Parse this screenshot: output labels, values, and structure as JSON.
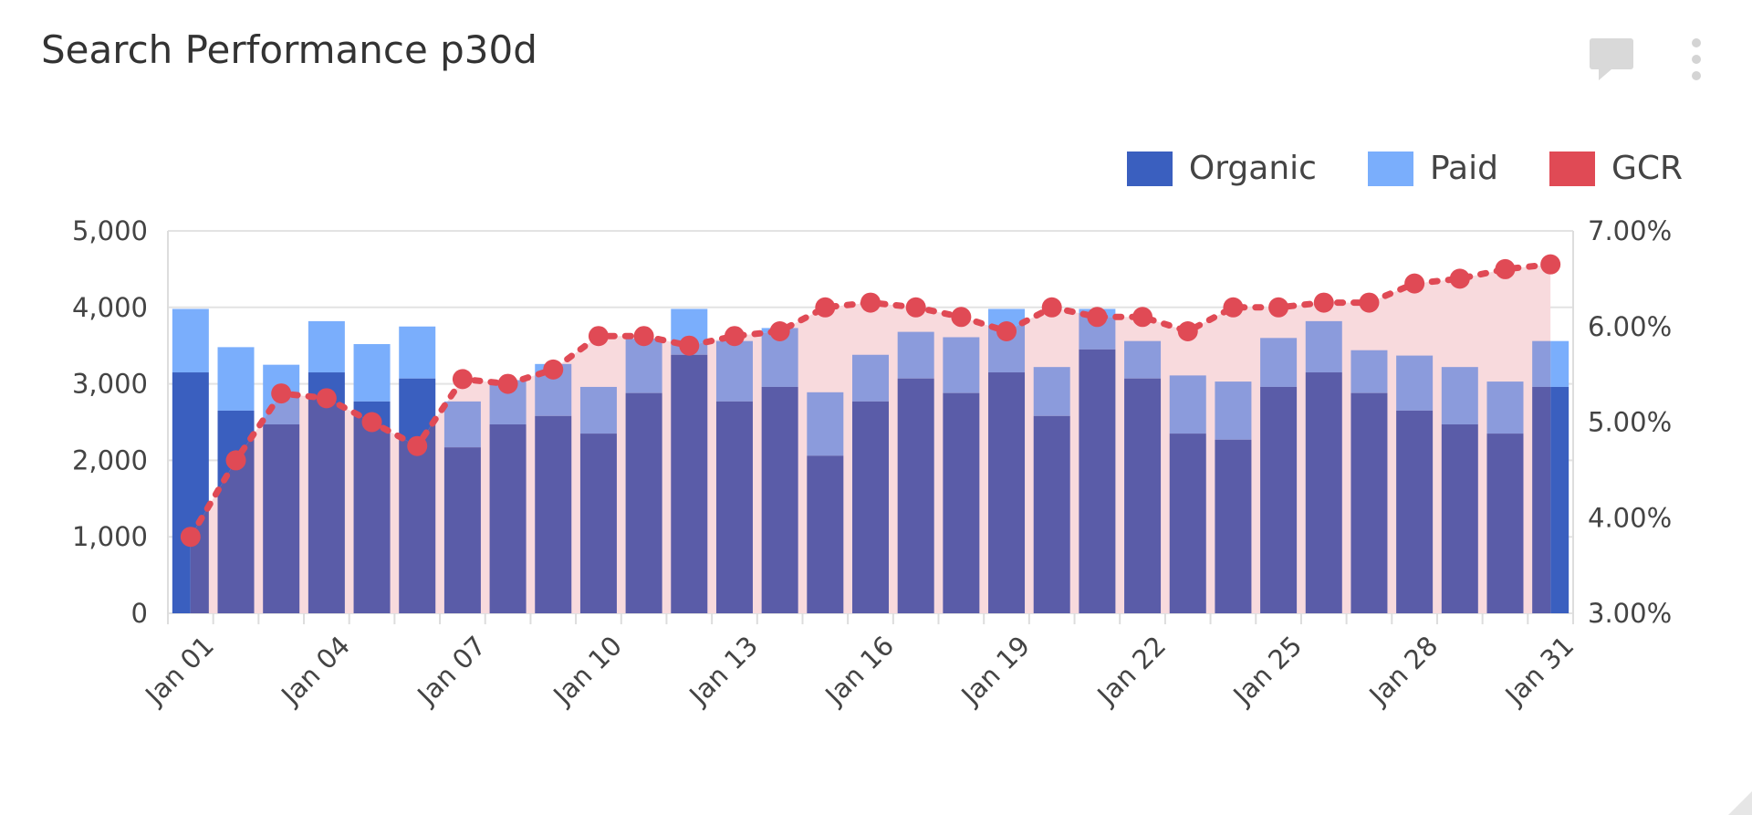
{
  "header": {
    "title": "Search Performance p30d",
    "comment_icon": "comment-icon",
    "menu_icon": "kebab-menu-icon"
  },
  "colors": {
    "organic": "#3a5fbf",
    "paid": "#7aaefc",
    "gcr": "#e04a55",
    "organic_under_area": "#5a5ca8",
    "paid_under_area": "#8b9bdc",
    "gcr_area": "#f8dadd"
  },
  "chart_data": {
    "type": "bar+line",
    "title": "Search Performance p30d",
    "legend": [
      {
        "name": "Organic"
      },
      {
        "name": "Paid"
      },
      {
        "name": "GCR"
      }
    ],
    "legend_position": "top-right",
    "categories": [
      "Jan 01",
      "Jan 02",
      "Jan 03",
      "Jan 04",
      "Jan 05",
      "Jan 06",
      "Jan 07",
      "Jan 08",
      "Jan 09",
      "Jan 10",
      "Jan 11",
      "Jan 12",
      "Jan 13",
      "Jan 14",
      "Jan 15",
      "Jan 16",
      "Jan 17",
      "Jan 18",
      "Jan 19",
      "Jan 20",
      "Jan 21",
      "Jan 22",
      "Jan 23",
      "Jan 24",
      "Jan 25",
      "Jan 26",
      "Jan 27",
      "Jan 28",
      "Jan 29",
      "Jan 30",
      "Jan 31"
    ],
    "x_tick_labels": [
      "Jan 01",
      "Jan 04",
      "Jan 07",
      "Jan 10",
      "Jan 13",
      "Jan 16",
      "Jan 19",
      "Jan 22",
      "Jan 25",
      "Jan 28",
      "Jan 31"
    ],
    "series": [
      {
        "name": "Organic",
        "type": "bar",
        "stacked": true,
        "axis": "left",
        "values": [
          3150,
          2650,
          2470,
          3150,
          2770,
          3070,
          2170,
          2470,
          2580,
          2350,
          2880,
          3380,
          2770,
          2960,
          2060,
          2770,
          3070,
          2880,
          3150,
          2580,
          3450,
          3070,
          2350,
          2270,
          2960,
          3150,
          2880,
          2650,
          2470,
          2350,
          2960
        ]
      },
      {
        "name": "Paid",
        "type": "bar",
        "stacked": true,
        "axis": "left",
        "values": [
          830,
          830,
          780,
          670,
          750,
          680,
          600,
          580,
          680,
          610,
          710,
          600,
          790,
          770,
          830,
          610,
          610,
          730,
          830,
          640,
          530,
          490,
          760,
          760,
          640,
          670,
          560,
          720,
          750,
          680,
          600
        ]
      },
      {
        "name": "GCR",
        "type": "area-line",
        "axis": "right",
        "unit": "%",
        "values": [
          3.8,
          4.6,
          5.3,
          5.25,
          5.0,
          4.75,
          5.45,
          5.4,
          5.55,
          5.9,
          5.9,
          5.8,
          5.9,
          5.95,
          6.2,
          6.25,
          6.2,
          6.1,
          5.95,
          6.2,
          6.1,
          6.1,
          5.95,
          6.2,
          6.2,
          6.25,
          6.25,
          6.45,
          6.5,
          6.6,
          6.65
        ]
      }
    ],
    "y_left": {
      "range": [
        0,
        5000
      ],
      "ticks": [
        "0",
        "1,000",
        "2,000",
        "3,000",
        "4,000",
        "5,000"
      ]
    },
    "y_right": {
      "range": [
        3,
        7
      ],
      "ticks": [
        "3.00%",
        "4.00%",
        "5.00%",
        "6.00%",
        "7.00%"
      ]
    },
    "grid": true
  }
}
